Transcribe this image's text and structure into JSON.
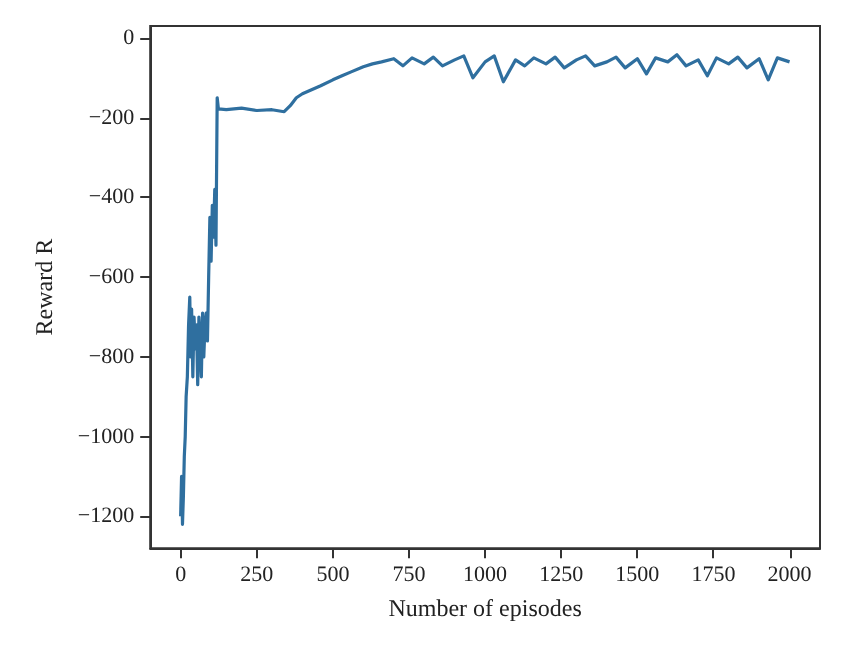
{
  "chart_data": {
    "type": "line",
    "xlabel": "Number of episodes",
    "ylabel": "Reward R",
    "x": [
      0,
      3,
      6,
      9,
      12,
      15,
      18,
      22,
      26,
      30,
      33,
      36,
      40,
      44,
      48,
      52,
      56,
      60,
      64,
      68,
      72,
      76,
      80,
      84,
      88,
      92,
      96,
      100,
      104,
      108,
      112,
      116,
      120,
      124,
      150,
      200,
      250,
      300,
      340,
      360,
      380,
      400,
      430,
      460,
      500,
      530,
      560,
      600,
      630,
      660,
      700,
      730,
      760,
      800,
      830,
      860,
      900,
      930,
      960,
      1000,
      1030,
      1060,
      1100,
      1130,
      1160,
      1200,
      1230,
      1260,
      1300,
      1330,
      1360,
      1400,
      1430,
      1460,
      1500,
      1530,
      1560,
      1600,
      1630,
      1660,
      1700,
      1730,
      1760,
      1800,
      1830,
      1860,
      1900,
      1930,
      1960,
      2000
    ],
    "series": [
      {
        "color": "#2f6f9f",
        "values": [
          -1200,
          -1100,
          -1220,
          -1150,
          -1050,
          -1000,
          -900,
          -850,
          -720,
          -650,
          -800,
          -680,
          -850,
          -700,
          -780,
          -720,
          -870,
          -700,
          -760,
          -850,
          -690,
          -800,
          -720,
          -690,
          -760,
          -600,
          -450,
          -560,
          -420,
          -500,
          -380,
          -520,
          -150,
          -178,
          -180,
          -176,
          -182,
          -180,
          -185,
          -170,
          -150,
          -140,
          -130,
          -120,
          -105,
          -95,
          -85,
          -72,
          -65,
          -60,
          -52,
          -70,
          -50,
          -65,
          -48,
          -70,
          -55,
          -45,
          -100,
          -60,
          -45,
          -110,
          -55,
          -70,
          -50,
          -65,
          -48,
          -75,
          -55,
          -45,
          -70,
          -60,
          -48,
          -75,
          -52,
          -90,
          -50,
          -60,
          -42,
          -70,
          -55,
          -95,
          -50,
          -65,
          -48,
          -75,
          -52,
          -105,
          -50,
          -60
        ]
      }
    ],
    "xlim": [
      -100,
      2100
    ],
    "ylim": [
      -1280,
      30
    ],
    "xticks": [
      0,
      250,
      500,
      750,
      1000,
      1250,
      1500,
      1750,
      2000
    ],
    "yticks": [
      -1200,
      -1000,
      -800,
      -600,
      -400,
      -200,
      0
    ],
    "grid": false,
    "marker": "none",
    "line_style": "solid"
  }
}
